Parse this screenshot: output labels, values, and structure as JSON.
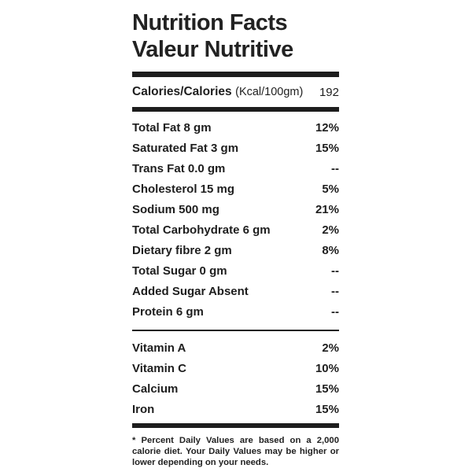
{
  "title": {
    "line1": "Nutrition Facts",
    "line2": "Valeur Nutritive"
  },
  "calories": {
    "label": "Calories/Calories",
    "unit": "(Kcal/100gm)",
    "value": "192"
  },
  "nutrients": [
    {
      "label": "Total Fat 8 gm",
      "daily_value": "12%"
    },
    {
      "label": "Saturated Fat 3 gm",
      "daily_value": "15%"
    },
    {
      "label": "Trans Fat 0.0 gm",
      "daily_value": "--"
    },
    {
      "label": "Cholesterol 15 mg",
      "daily_value": "5%"
    },
    {
      "label": "Sodium 500 mg",
      "daily_value": "21%"
    },
    {
      "label": "Total Carbohydrate 6 gm",
      "daily_value": "2%"
    },
    {
      "label": "Dietary fibre 2 gm",
      "daily_value": "8%"
    },
    {
      "label": "Total Sugar 0 gm",
      "daily_value": "--"
    },
    {
      "label": "Added Sugar Absent",
      "daily_value": "--"
    },
    {
      "label": "Protein 6 gm",
      "daily_value": "--"
    }
  ],
  "vitamins": [
    {
      "label": "Vitamin A",
      "daily_value": "2%"
    },
    {
      "label": "Vitamin C",
      "daily_value": "10%"
    },
    {
      "label": "Calcium",
      "daily_value": "15%"
    },
    {
      "label": "Iron",
      "daily_value": "15%"
    }
  ],
  "footnote": "* Percent Daily Values are based on a 2,000 calorie diet. Your Daily Values may be higher or lower depending on your needs.",
  "colors": {
    "text": "#222222",
    "rule": "#1d1d1d",
    "background": "#ffffff"
  }
}
